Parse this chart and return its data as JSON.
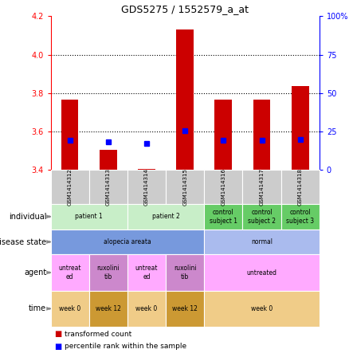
{
  "title": "GDS5275 / 1552579_a_at",
  "samples": [
    "GSM1414312",
    "GSM1414313",
    "GSM1414314",
    "GSM1414315",
    "GSM1414316",
    "GSM1414317",
    "GSM1414318"
  ],
  "red_values": [
    3.765,
    3.505,
    3.405,
    4.13,
    3.765,
    3.765,
    3.835
  ],
  "blue_values": [
    3.555,
    3.545,
    3.535,
    3.605,
    3.555,
    3.555,
    3.558
  ],
  "ylim_left": [
    3.4,
    4.2
  ],
  "ylim_right": [
    0,
    100
  ],
  "yticks_left": [
    3.4,
    3.6,
    3.8,
    4.0,
    4.2
  ],
  "yticks_right": [
    0,
    25,
    50,
    75,
    100
  ],
  "ytick_labels_right": [
    "0",
    "25",
    "50",
    "75",
    "100%"
  ],
  "individual_groups": [
    {
      "label": "patient 1",
      "cols": [
        0,
        1
      ],
      "color": "#c8eec8"
    },
    {
      "label": "patient 2",
      "cols": [
        2,
        3
      ],
      "color": "#c8eec8"
    },
    {
      "label": "control\nsubject 1",
      "cols": [
        4
      ],
      "color": "#66cc66"
    },
    {
      "label": "control\nsubject 2",
      "cols": [
        5
      ],
      "color": "#66cc66"
    },
    {
      "label": "control\nsubject 3",
      "cols": [
        6
      ],
      "color": "#66cc66"
    }
  ],
  "disease_groups": [
    {
      "label": "alopecia areata",
      "cols": [
        0,
        1,
        2,
        3
      ],
      "color": "#7799dd"
    },
    {
      "label": "normal",
      "cols": [
        4,
        5,
        6
      ],
      "color": "#aabbee"
    }
  ],
  "agent_groups": [
    {
      "label": "untreat\ned",
      "cols": [
        0
      ],
      "color": "#ffaaff"
    },
    {
      "label": "ruxolini\ntib",
      "cols": [
        1
      ],
      "color": "#cc88cc"
    },
    {
      "label": "untreat\ned",
      "cols": [
        2
      ],
      "color": "#ffaaff"
    },
    {
      "label": "ruxolini\ntib",
      "cols": [
        3
      ],
      "color": "#cc88cc"
    },
    {
      "label": "untreated",
      "cols": [
        4,
        5,
        6
      ],
      "color": "#ffaaff"
    }
  ],
  "time_groups": [
    {
      "label": "week 0",
      "cols": [
        0
      ],
      "color": "#f0cc88"
    },
    {
      "label": "week 12",
      "cols": [
        1
      ],
      "color": "#cc9933"
    },
    {
      "label": "week 0",
      "cols": [
        2
      ],
      "color": "#f0cc88"
    },
    {
      "label": "week 12",
      "cols": [
        3
      ],
      "color": "#cc9933"
    },
    {
      "label": "week 0",
      "cols": [
        4,
        5,
        6
      ],
      "color": "#f0cc88"
    }
  ],
  "bar_bottom": 3.4,
  "legend_red": "transformed count",
  "legend_blue": "percentile rank within the sample",
  "row_labels": [
    "individual",
    "disease state",
    "agent",
    "time"
  ],
  "sample_bg": "#cccccc"
}
